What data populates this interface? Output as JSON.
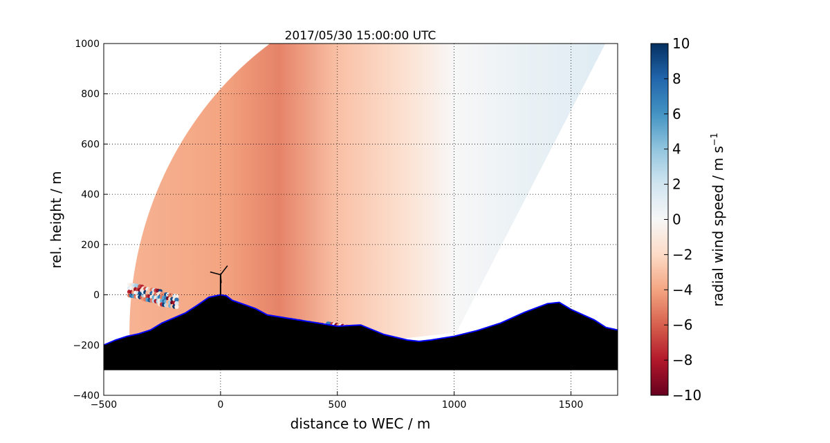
{
  "chart_data": {
    "type": "heatmap",
    "title": "2017/05/30 15:00:00 UTC",
    "xlabel": "distance to WEC / m",
    "ylabel": "rel. height / m",
    "xlim": [
      -500,
      1700
    ],
    "ylim": [
      -400,
      1000
    ],
    "xticks": [
      -500,
      0,
      500,
      1000,
      1500
    ],
    "yticks": [
      -400,
      -200,
      0,
      200,
      400,
      600,
      800,
      1000
    ],
    "grid": true,
    "colormap": "RdBu",
    "colorbar": {
      "label": "radial wind speed / m s",
      "label_superscript": "−1",
      "range": [
        -10,
        10
      ],
      "ticks": [
        -10,
        -8,
        -6,
        -4,
        -2,
        0,
        2,
        4,
        6,
        8,
        10
      ]
    },
    "scan_sector": {
      "lidar_position": [
        1010,
        -150
      ],
      "max_range_m": 1400,
      "elevation_deg": [
        -6,
        61
      ]
    },
    "wind_field_samples": [
      {
        "x": -400,
        "v": -3.5
      },
      {
        "x": 0,
        "v": -4
      },
      {
        "x": 250,
        "v": -5
      },
      {
        "x": 500,
        "v": -3
      },
      {
        "x": 800,
        "v": -1.5
      },
      {
        "x": 1000,
        "v": 0
      },
      {
        "x": 1300,
        "v": 0.7
      },
      {
        "x": 1600,
        "v": 1.2
      }
    ],
    "wec_position": [
      0,
      0
    ],
    "terrain": {
      "bottom": -300,
      "line_color": "#0000ff",
      "fill_color": "#000000",
      "points": [
        [
          -500,
          -200
        ],
        [
          -450,
          -180
        ],
        [
          -400,
          -165
        ],
        [
          -350,
          -155
        ],
        [
          -300,
          -140
        ],
        [
          -250,
          -112
        ],
        [
          -200,
          -92
        ],
        [
          -150,
          -72
        ],
        [
          -100,
          -42
        ],
        [
          -50,
          -10
        ],
        [
          0,
          0
        ],
        [
          25,
          -4
        ],
        [
          50,
          -22
        ],
        [
          100,
          -38
        ],
        [
          150,
          -55
        ],
        [
          200,
          -80
        ],
        [
          300,
          -95
        ],
        [
          400,
          -110
        ],
        [
          500,
          -125
        ],
        [
          600,
          -120
        ],
        [
          700,
          -158
        ],
        [
          800,
          -180
        ],
        [
          850,
          -185
        ],
        [
          900,
          -180
        ],
        [
          1000,
          -165
        ],
        [
          1100,
          -142
        ],
        [
          1200,
          -112
        ],
        [
          1300,
          -70
        ],
        [
          1400,
          -35
        ],
        [
          1450,
          -30
        ],
        [
          1500,
          -58
        ],
        [
          1600,
          -100
        ],
        [
          1650,
          -130
        ],
        [
          1700,
          -140
        ]
      ]
    }
  }
}
